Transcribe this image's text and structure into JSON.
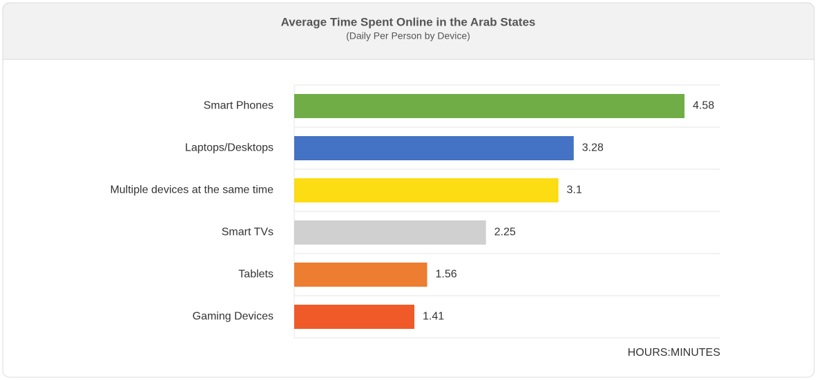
{
  "chart_data": {
    "type": "bar",
    "orientation": "horizontal",
    "title": "Average Time Spent Online in the Arab States",
    "subtitle": "(Daily Per Person by Device)",
    "x_label": "HOURS:MINUTES",
    "categories": [
      "Smart Phones",
      "Laptops/Desktops",
      "Multiple devices at the same time",
      "Smart TVs",
      "Tablets",
      "Gaming Devices"
    ],
    "values": [
      4.58,
      3.28,
      3.1,
      2.25,
      1.56,
      1.41
    ],
    "colors": [
      "#70ad47",
      "#4472c4",
      "#fcdc12",
      "#d0d0d0",
      "#ed7d31",
      "#f05a28"
    ],
    "xlim": [
      0,
      5
    ]
  }
}
